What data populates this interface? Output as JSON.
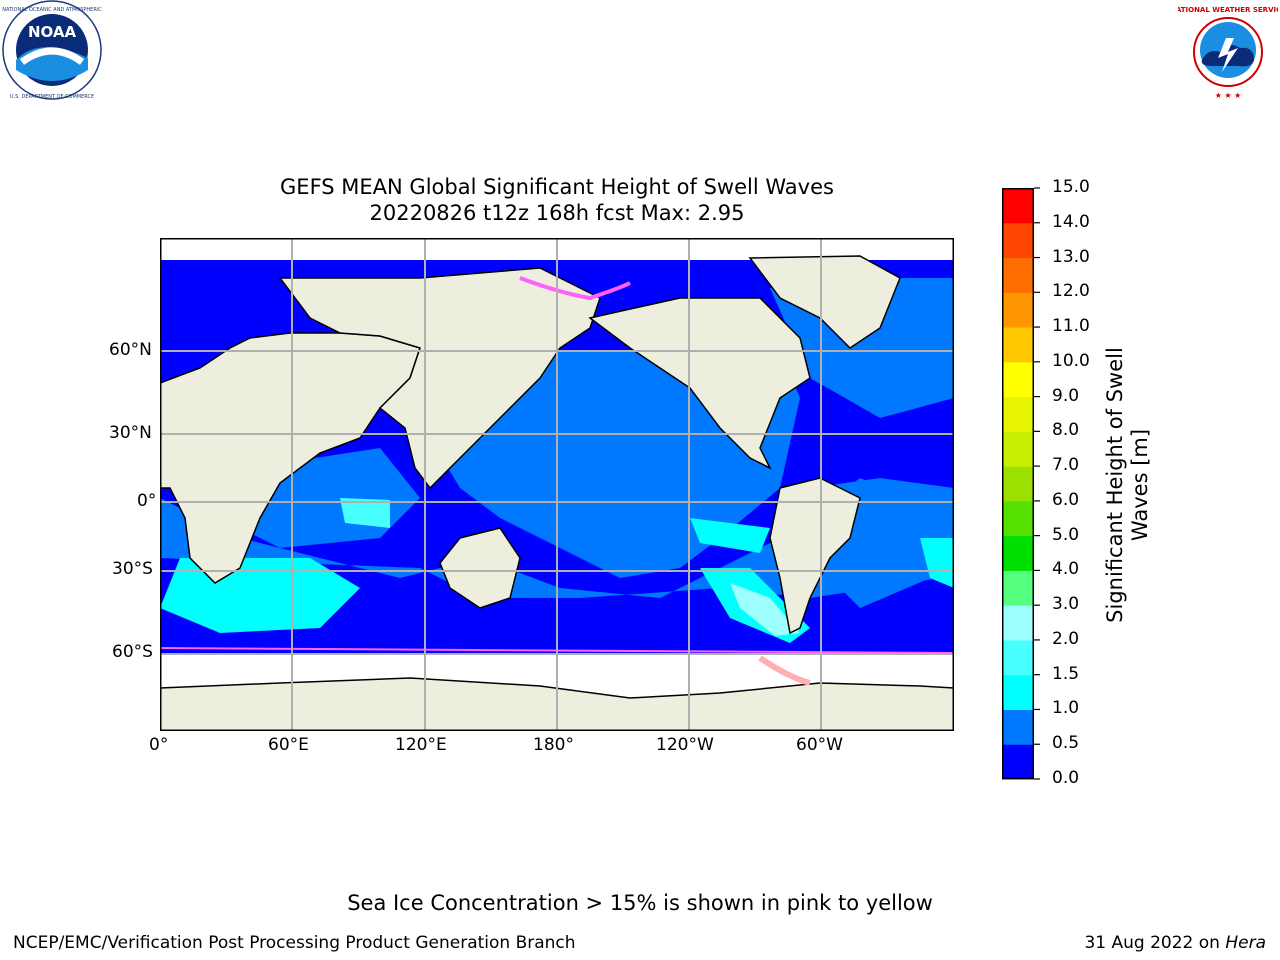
{
  "logos": {
    "left": {
      "name": "noaa-logo",
      "text": "NOAA",
      "ring_text": "NATIONAL OCEANIC AND ATMOSPHERIC ADMINISTRATION · U.S. DEPARTMENT OF COMMERCE"
    },
    "right": {
      "name": "nws-logo",
      "ring_text": "NATIONAL WEATHER SERVICE"
    }
  },
  "chart": {
    "title_line1": "GEFS MEAN Global Significant Height of Swell Waves",
    "title_line2": "20220826 t12z 168h fcst   Max: 2.95"
  },
  "chart_data": {
    "type": "heatmap",
    "title": "GEFS MEAN Global Significant Height of Swell Waves",
    "subtitle": "20220826 t12z 168h fcst   Max: 2.95",
    "x_axis": {
      "ticks": [
        "0°",
        "60°E",
        "120°E",
        "180°",
        "120°W",
        "60°W"
      ]
    },
    "y_axis": {
      "ticks": [
        "60°N",
        "30°N",
        "0°",
        "30°S",
        "60°S"
      ]
    },
    "grid": true,
    "colorbar": {
      "label": "Significant Height of Swell Waves [m]",
      "label_line1": "Significant Height of Swell",
      "label_line2": "Waves [m]",
      "ticks": [
        "0.0",
        "0.5",
        "1.0",
        "1.5",
        "2.0",
        "3.0",
        "4.0",
        "5.0",
        "6.0",
        "7.0",
        "8.0",
        "9.0",
        "10.0",
        "11.0",
        "12.0",
        "13.0",
        "14.0",
        "15.0"
      ],
      "colors": [
        "#0000ff",
        "#0078ff",
        "#00ffff",
        "#47ffff",
        "#9effff",
        "#55ff80",
        "#00e000",
        "#55e000",
        "#9be000",
        "#c8f000",
        "#e8f500",
        "#ffff00",
        "#ffc800",
        "#ff9600",
        "#ff6e00",
        "#ff4600",
        "#ff0000"
      ]
    },
    "land_color": "#eeeedf",
    "ice_note_colors": [
      "#ff60ff",
      "#ffb0b0",
      "#ffe0a0"
    ]
  },
  "footer": {
    "note": "Sea Ice Concentration > 15% is shown in pink to yellow",
    "credit_left": "NCEP/EMC/Verification Post Processing Product Generation Branch",
    "credit_date": "31 Aug 2022 on ",
    "credit_machine": "Hera"
  }
}
